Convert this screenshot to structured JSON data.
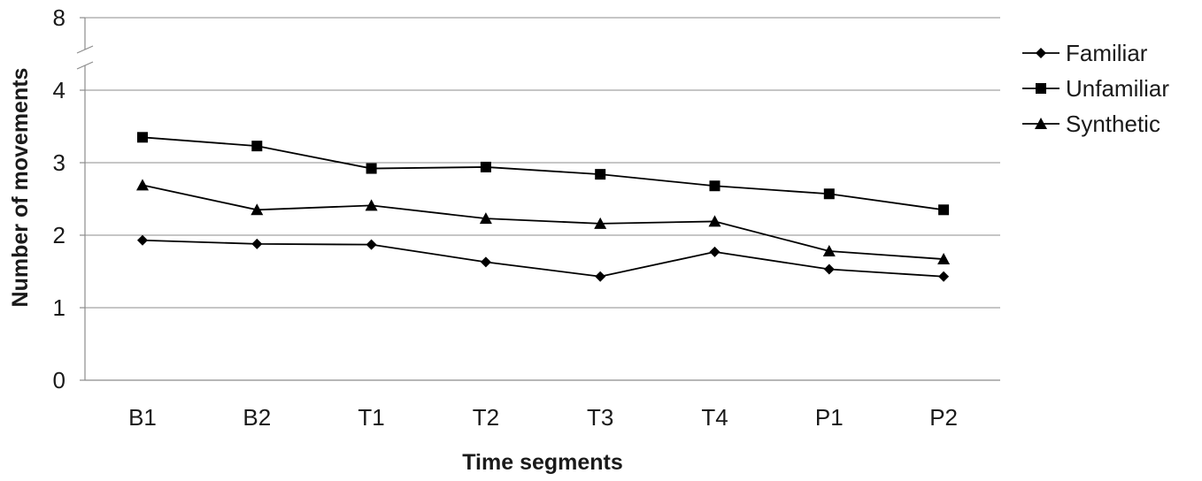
{
  "chart_data": {
    "type": "line",
    "categories": [
      "B1",
      "B2",
      "T1",
      "T2",
      "T3",
      "T4",
      "P1",
      "P2"
    ],
    "xlabel": "Time segments",
    "ylabel": "Number of movements",
    "ylim": [
      0,
      8
    ],
    "axis_break": {
      "from": 4,
      "to": 8
    },
    "yticks": [
      {
        "value": 0,
        "label": "0"
      },
      {
        "value": 1,
        "label": "1"
      },
      {
        "value": 2,
        "label": "2"
      },
      {
        "value": 3,
        "label": "3"
      },
      {
        "value": 4,
        "label": "4"
      },
      {
        "value": 8,
        "label": "8"
      }
    ],
    "grid": true,
    "legend_position": "right",
    "series": [
      {
        "name": "Familiar",
        "marker": "diamond",
        "color": "#000000",
        "values": [
          1.93,
          1.88,
          1.87,
          1.63,
          1.43,
          1.77,
          1.53,
          1.43
        ]
      },
      {
        "name": "Unfamiliar",
        "marker": "square",
        "color": "#000000",
        "values": [
          3.35,
          3.23,
          2.92,
          2.94,
          2.84,
          2.68,
          2.57,
          2.35
        ]
      },
      {
        "name": "Synthetic",
        "marker": "triangle",
        "color": "#000000",
        "values": [
          2.69,
          2.35,
          2.41,
          2.23,
          2.16,
          2.19,
          1.78,
          1.67
        ]
      }
    ]
  }
}
